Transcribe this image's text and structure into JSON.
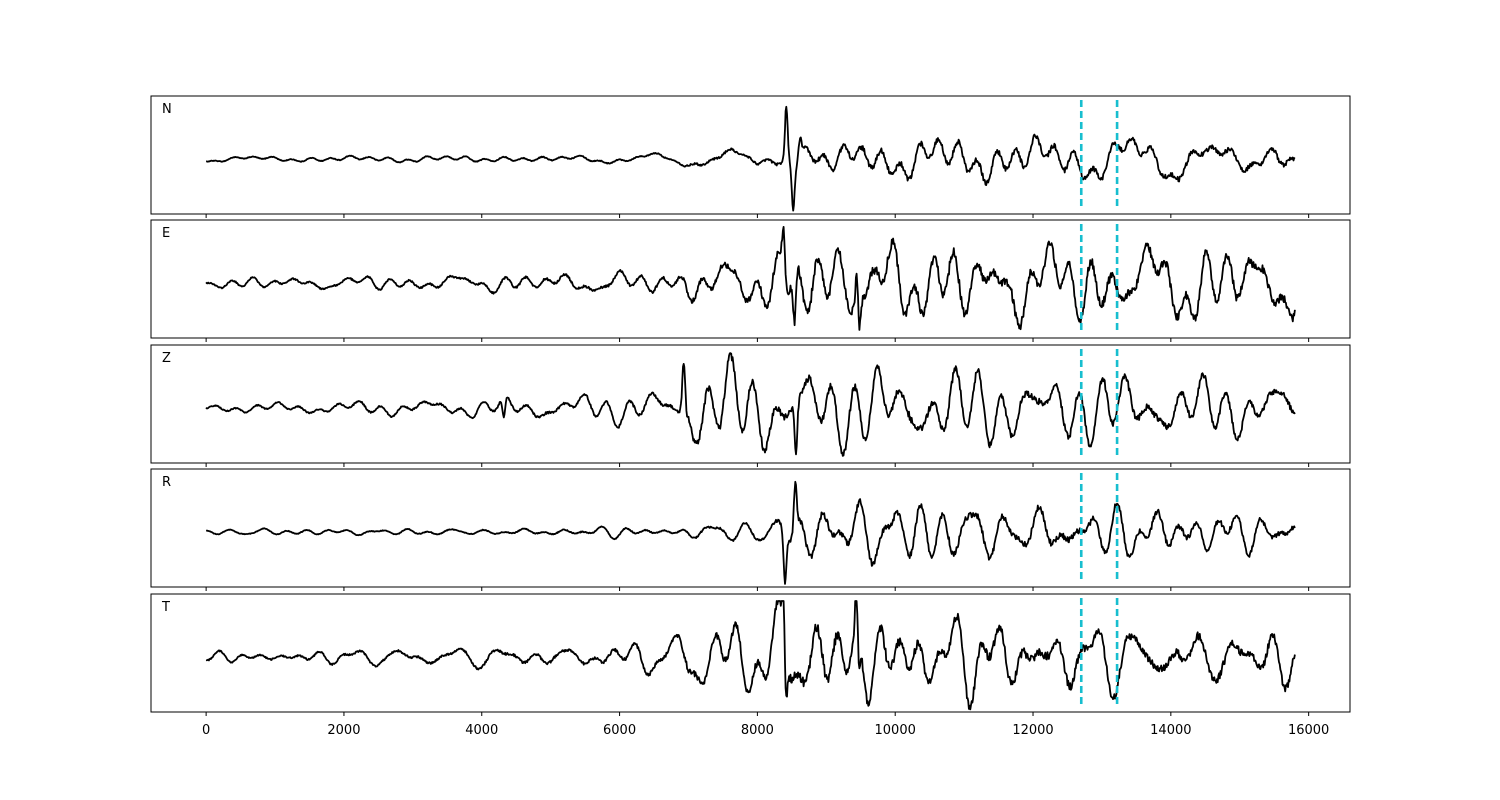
{
  "chart_data": {
    "type": "line",
    "title": "",
    "xlabel": "",
    "ylabel": "",
    "xlim": [
      -800,
      16600
    ],
    "x_ticks": [
      0,
      2000,
      4000,
      6000,
      8000,
      10000,
      12000,
      14000,
      16000
    ],
    "x_tick_labels": [
      "0",
      "2000",
      "4000",
      "6000",
      "8000",
      "10000",
      "12000",
      "14000",
      "16000"
    ],
    "grid": false,
    "sample_range": [
      0,
      15800
    ],
    "marker_lines": [
      12700,
      13220
    ],
    "series": [
      {
        "label": "N",
        "envelope": [
          [
            0,
            0.04
          ],
          [
            4000,
            0.05
          ],
          [
            6800,
            0.07
          ],
          [
            7000,
            0.12
          ],
          [
            8000,
            0.14
          ],
          [
            8300,
            0.16
          ],
          [
            8700,
            0.3
          ],
          [
            9500,
            0.32
          ],
          [
            12000,
            0.36
          ],
          [
            15800,
            0.3
          ]
        ],
        "peaks": [
          [
            8420,
            0.92
          ],
          [
            8520,
            -0.78
          ],
          [
            8620,
            0.35
          ]
        ]
      },
      {
        "label": "E",
        "envelope": [
          [
            0,
            0.08
          ],
          [
            4000,
            0.12
          ],
          [
            6800,
            0.18
          ],
          [
            7000,
            0.3
          ],
          [
            8000,
            0.4
          ],
          [
            8300,
            0.55
          ],
          [
            8700,
            0.65
          ],
          [
            9500,
            0.65
          ],
          [
            12000,
            0.58
          ],
          [
            15800,
            0.55
          ]
        ],
        "peaks": [
          [
            8380,
            0.75
          ],
          [
            8540,
            -0.85
          ],
          [
            9450,
            0.8
          ],
          [
            9470,
            -0.75
          ]
        ]
      },
      {
        "label": "Z",
        "envelope": [
          [
            0,
            0.07
          ],
          [
            4000,
            0.12
          ],
          [
            6800,
            0.2
          ],
          [
            7000,
            0.45
          ],
          [
            8000,
            0.5
          ],
          [
            8300,
            0.45
          ],
          [
            8700,
            0.45
          ],
          [
            9500,
            0.45
          ],
          [
            12000,
            0.45
          ],
          [
            15800,
            0.35
          ]
        ],
        "peaks": [
          [
            4320,
            -0.35
          ],
          [
            6930,
            0.85
          ],
          [
            8560,
            -0.85
          ]
        ]
      },
      {
        "label": "R",
        "envelope": [
          [
            0,
            0.04
          ],
          [
            4000,
            0.05
          ],
          [
            6800,
            0.07
          ],
          [
            7000,
            0.1
          ],
          [
            8000,
            0.14
          ],
          [
            8300,
            0.2
          ],
          [
            8700,
            0.35
          ],
          [
            9500,
            0.38
          ],
          [
            12000,
            0.38
          ],
          [
            15800,
            0.28
          ]
        ],
        "peaks": [
          [
            8400,
            -0.85
          ],
          [
            8550,
            0.8
          ]
        ]
      },
      {
        "label": "T",
        "envelope": [
          [
            0,
            0.08
          ],
          [
            4000,
            0.15
          ],
          [
            6800,
            0.22
          ],
          [
            7000,
            0.4
          ],
          [
            8000,
            0.5
          ],
          [
            8300,
            0.6
          ],
          [
            8700,
            0.65
          ],
          [
            9500,
            0.62
          ],
          [
            12000,
            0.55
          ],
          [
            15800,
            0.5
          ]
        ],
        "peaks": [
          [
            8380,
            0.92
          ],
          [
            8410,
            -0.88
          ],
          [
            9440,
            0.92
          ],
          [
            9470,
            -0.82
          ]
        ]
      }
    ]
  },
  "colors": {
    "trace": "#000000",
    "marker": "#17becf"
  }
}
